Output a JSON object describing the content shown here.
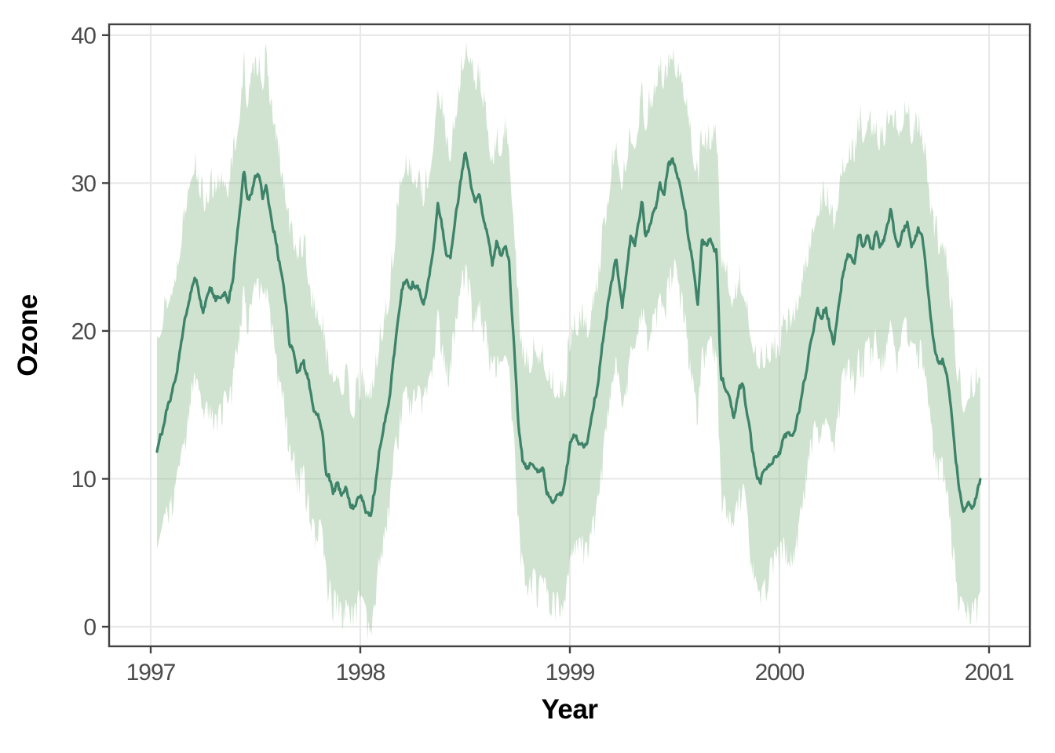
{
  "chart_data": {
    "type": "line",
    "title": "",
    "xlabel": "Year",
    "ylabel": "Ozone",
    "x_ticks": [
      1997,
      1998,
      1999,
      2000,
      2001
    ],
    "x_tick_labels": [
      "1997",
      "1998",
      "1999",
      "2000",
      "2001"
    ],
    "y_ticks": [
      0,
      10,
      20,
      30,
      40
    ],
    "y_tick_labels": [
      "0",
      "10",
      "20",
      "30",
      "40"
    ],
    "xlim": [
      1996.8,
      2001.19
    ],
    "ylim": [
      -1.3,
      40.7
    ],
    "grid": "major-only",
    "legend": "none",
    "series": [
      {
        "name": "ozone-mean",
        "type": "line",
        "points": [
          [
            1997.03,
            12.0
          ],
          [
            1997.06,
            13.5
          ],
          [
            1997.08,
            15.0
          ],
          [
            1997.1,
            15.8
          ],
          [
            1997.12,
            17.0
          ],
          [
            1997.15,
            19.5
          ],
          [
            1997.17,
            21.0
          ],
          [
            1997.19,
            22.8
          ],
          [
            1997.21,
            23.6
          ],
          [
            1997.23,
            22.6
          ],
          [
            1997.25,
            21.4
          ],
          [
            1997.27,
            22.4
          ],
          [
            1997.29,
            22.7
          ],
          [
            1997.31,
            21.8
          ],
          [
            1997.33,
            22.1
          ],
          [
            1997.35,
            22.5
          ],
          [
            1997.37,
            21.7
          ],
          [
            1997.39,
            23.5
          ],
          [
            1997.41,
            26.2
          ],
          [
            1997.43,
            28.5
          ],
          [
            1997.445,
            30.8
          ],
          [
            1997.46,
            28.7
          ],
          [
            1997.48,
            29.3
          ],
          [
            1997.5,
            30.2
          ],
          [
            1997.52,
            30.3
          ],
          [
            1997.535,
            28.9
          ],
          [
            1997.55,
            29.9
          ],
          [
            1997.57,
            28.3
          ],
          [
            1997.59,
            26.8
          ],
          [
            1997.61,
            25.0
          ],
          [
            1997.63,
            23.2
          ],
          [
            1997.65,
            21.2
          ],
          [
            1997.66,
            19.3
          ],
          [
            1997.675,
            18.9
          ],
          [
            1997.7,
            17.1
          ],
          [
            1997.73,
            17.9
          ],
          [
            1997.755,
            16.3
          ],
          [
            1997.775,
            14.6
          ],
          [
            1997.8,
            14.3
          ],
          [
            1997.82,
            13.0
          ],
          [
            1997.835,
            10.5
          ],
          [
            1997.85,
            9.9
          ],
          [
            1997.87,
            9.0
          ],
          [
            1997.89,
            9.6
          ],
          [
            1997.91,
            8.8
          ],
          [
            1997.93,
            9.4
          ],
          [
            1997.95,
            8.4
          ],
          [
            1997.97,
            7.8
          ],
          [
            1997.99,
            8.7
          ],
          [
            1998.01,
            8.4
          ],
          [
            1998.03,
            7.9
          ],
          [
            1998.05,
            7.5
          ],
          [
            1998.07,
            9.5
          ],
          [
            1998.09,
            11.8
          ],
          [
            1998.11,
            13.4
          ],
          [
            1998.14,
            15.5
          ],
          [
            1998.17,
            19.6
          ],
          [
            1998.2,
            23.0
          ],
          [
            1998.22,
            23.6
          ],
          [
            1998.24,
            22.9
          ],
          [
            1998.27,
            23.1
          ],
          [
            1998.3,
            21.9
          ],
          [
            1998.33,
            23.5
          ],
          [
            1998.35,
            25.5
          ],
          [
            1998.37,
            28.8
          ],
          [
            1998.39,
            27.0
          ],
          [
            1998.41,
            25.2
          ],
          [
            1998.43,
            24.9
          ],
          [
            1998.45,
            27.2
          ],
          [
            1998.47,
            29.1
          ],
          [
            1998.485,
            30.9
          ],
          [
            1998.5,
            31.9
          ],
          [
            1998.52,
            31.0
          ],
          [
            1998.53,
            29.7
          ],
          [
            1998.55,
            28.9
          ],
          [
            1998.57,
            29.1
          ],
          [
            1998.59,
            27.5
          ],
          [
            1998.61,
            26.1
          ],
          [
            1998.63,
            24.4
          ],
          [
            1998.65,
            25.7
          ],
          [
            1998.67,
            25.1
          ],
          [
            1998.69,
            25.7
          ],
          [
            1998.71,
            24.8
          ],
          [
            1998.72,
            22.0
          ],
          [
            1998.735,
            19.0
          ],
          [
            1998.755,
            13.7
          ],
          [
            1998.775,
            11.0
          ],
          [
            1998.8,
            10.7
          ],
          [
            1998.825,
            11.2
          ],
          [
            1998.85,
            10.6
          ],
          [
            1998.875,
            10.4
          ],
          [
            1998.89,
            9.3
          ],
          [
            1998.915,
            8.7
          ],
          [
            1998.94,
            8.9
          ],
          [
            1998.96,
            8.5
          ],
          [
            1998.98,
            9.8
          ],
          [
            1999.0,
            12.3
          ],
          [
            1999.02,
            13.1
          ],
          [
            1999.04,
            12.4
          ],
          [
            1999.06,
            12.7
          ],
          [
            1999.08,
            12.0
          ],
          [
            1999.1,
            13.6
          ],
          [
            1999.13,
            16.0
          ],
          [
            1999.16,
            19.5
          ],
          [
            1999.19,
            22.5
          ],
          [
            1999.22,
            24.9
          ],
          [
            1999.25,
            21.6
          ],
          [
            1999.27,
            24.0
          ],
          [
            1999.29,
            26.4
          ],
          [
            1999.31,
            26.0
          ],
          [
            1999.33,
            27.5
          ],
          [
            1999.345,
            28.8
          ],
          [
            1999.36,
            26.6
          ],
          [
            1999.39,
            27.5
          ],
          [
            1999.41,
            28.5
          ],
          [
            1999.43,
            30.0
          ],
          [
            1999.45,
            29.2
          ],
          [
            1999.47,
            31.0
          ],
          [
            1999.49,
            31.8
          ],
          [
            1999.51,
            30.5
          ],
          [
            1999.53,
            29.5
          ],
          [
            1999.55,
            28.0
          ],
          [
            1999.58,
            25.0
          ],
          [
            1999.61,
            22.1
          ],
          [
            1999.63,
            26.1
          ],
          [
            1999.65,
            25.5
          ],
          [
            1999.67,
            26.0
          ],
          [
            1999.69,
            25.6
          ],
          [
            1999.7,
            25.8
          ],
          [
            1999.72,
            16.8
          ],
          [
            1999.74,
            16.2
          ],
          [
            1999.76,
            15.4
          ],
          [
            1999.78,
            14.2
          ],
          [
            1999.81,
            16.3
          ],
          [
            1999.83,
            16.0
          ],
          [
            1999.85,
            14.0
          ],
          [
            1999.87,
            12.0
          ],
          [
            1999.89,
            10.5
          ],
          [
            1999.91,
            9.7
          ],
          [
            1999.93,
            10.5
          ],
          [
            1999.96,
            11.2
          ],
          [
            2000.0,
            12.0
          ],
          [
            2000.02,
            12.8
          ],
          [
            2000.04,
            13.2
          ],
          [
            2000.06,
            12.6
          ],
          [
            2000.08,
            13.5
          ],
          [
            2000.1,
            15.0
          ],
          [
            2000.13,
            17.5
          ],
          [
            2000.16,
            20.0
          ],
          [
            2000.18,
            21.6
          ],
          [
            2000.2,
            20.8
          ],
          [
            2000.22,
            21.5
          ],
          [
            2000.24,
            20.5
          ],
          [
            2000.26,
            19.0
          ],
          [
            2000.28,
            21.5
          ],
          [
            2000.3,
            23.5
          ],
          [
            2000.32,
            24.9
          ],
          [
            2000.34,
            25.3
          ],
          [
            2000.36,
            24.8
          ],
          [
            2000.38,
            26.6
          ],
          [
            2000.4,
            25.6
          ],
          [
            2000.42,
            26.3
          ],
          [
            2000.44,
            25.2
          ],
          [
            2000.46,
            26.6
          ],
          [
            2000.48,
            25.5
          ],
          [
            2000.5,
            26.3
          ],
          [
            2000.53,
            28.2
          ],
          [
            2000.55,
            26.2
          ],
          [
            2000.57,
            25.6
          ],
          [
            2000.59,
            26.6
          ],
          [
            2000.61,
            27.4
          ],
          [
            2000.63,
            25.9
          ],
          [
            2000.65,
            26.4
          ],
          [
            2000.66,
            27.0
          ],
          [
            2000.68,
            26.5
          ],
          [
            2000.7,
            24.0
          ],
          [
            2000.72,
            21.0
          ],
          [
            2000.74,
            18.5
          ],
          [
            2000.76,
            17.8
          ],
          [
            2000.78,
            18.2
          ],
          [
            2000.8,
            16.8
          ],
          [
            2000.82,
            14.5
          ],
          [
            2000.84,
            11.5
          ],
          [
            2000.86,
            9.0
          ],
          [
            2000.88,
            7.9
          ],
          [
            2000.9,
            8.4
          ],
          [
            2000.92,
            8.1
          ],
          [
            2000.94,
            8.7
          ],
          [
            2000.958,
            9.7
          ]
        ]
      }
    ],
    "band": {
      "name": "confidence-band",
      "follows": "ozone-mean",
      "half_width": 7.0,
      "description": "semi-transparent light green band around the mean line, approx +/-7 ozone units, ragged daily-noise edges"
    }
  },
  "colors": {
    "line": "#3d8369",
    "band_fill": "#8fbc8f",
    "band_opacity": 0.42,
    "grid": "#e8e8e8",
    "axis": "#424242",
    "tick_label": "#4a4a4a",
    "axis_title": "#000000",
    "background": "#ffffff"
  }
}
